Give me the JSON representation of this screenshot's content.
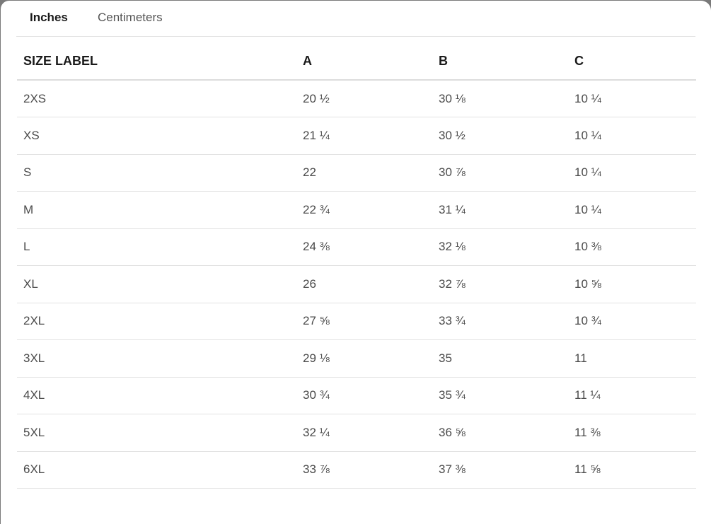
{
  "tabs": [
    {
      "label": "Inches",
      "active": true
    },
    {
      "label": "Centimeters",
      "active": false
    }
  ],
  "table": {
    "headers": [
      "SIZE LABEL",
      "A",
      "B",
      "C"
    ],
    "rows": [
      [
        "2XS",
        "20 ½",
        "30 ⅛",
        "10 ¼"
      ],
      [
        "XS",
        "21 ¼",
        "30 ½",
        "10 ¼"
      ],
      [
        "S",
        "22",
        "30 ⅞",
        "10 ¼"
      ],
      [
        "M",
        "22 ¾",
        "31 ¼",
        "10 ¼"
      ],
      [
        "L",
        "24 ⅜",
        "32 ⅛",
        "10 ⅜"
      ],
      [
        "XL",
        "26",
        "32 ⅞",
        "10 ⅝"
      ],
      [
        "2XL",
        "27 ⅝",
        "33 ¾",
        "10 ¾"
      ],
      [
        "3XL",
        "29 ⅛",
        "35",
        "11"
      ],
      [
        "4XL",
        "30 ¾",
        "35 ¾",
        "11 ¼"
      ],
      [
        "5XL",
        "32 ¼",
        "36 ⅝",
        "11 ⅜"
      ],
      [
        "6XL",
        "33 ⅞",
        "37 ⅜",
        "11 ⅝"
      ]
    ]
  }
}
